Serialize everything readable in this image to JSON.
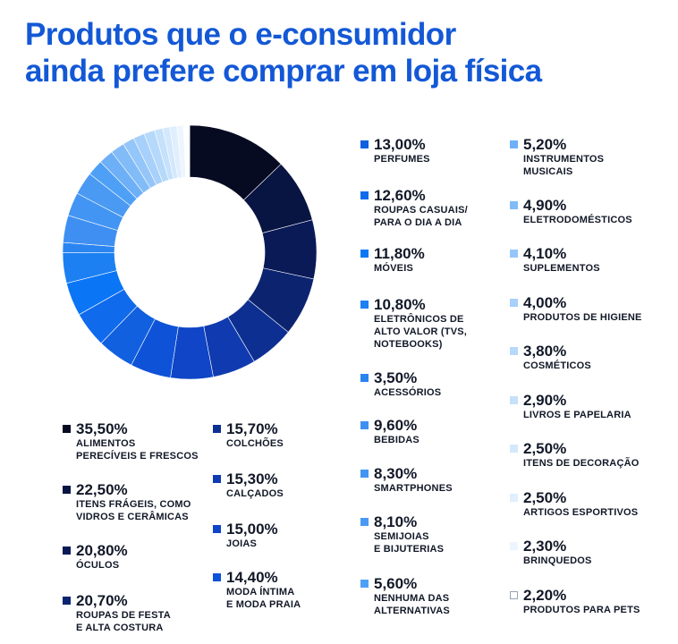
{
  "header": {
    "title_line1": "Produtos que o e-consumidor",
    "title_line2": "ainda prefere comprar em loja física"
  },
  "chart_data": {
    "type": "pie",
    "variant": "donut",
    "title": "Produtos que o e-consumidor ainda prefere comprar em loja física",
    "unit": "%",
    "slices": [
      {
        "label": "ALIMENTOS\nPERECÍVEIS E FRESCOS",
        "value": 35.5,
        "display": "35,50%",
        "color": "#060b22"
      },
      {
        "label": "ITENS FRÁGEIS, COMO\nVIDROS E CERÂMICAS",
        "value": 22.5,
        "display": "22,50%",
        "color": "#081442"
      },
      {
        "label": "ÓCULOS",
        "value": 20.8,
        "display": "20,80%",
        "color": "#0a1a57"
      },
      {
        "label": "ROUPAS DE FESTA\nE ALTA COSTURA",
        "value": 20.7,
        "display": "20,70%",
        "color": "#0c2470"
      },
      {
        "label": "COLCHÕES",
        "value": 15.7,
        "display": "15,70%",
        "color": "#0e2f92"
      },
      {
        "label": "CALÇADOS",
        "value": 15.3,
        "display": "15,30%",
        "color": "#103bb0"
      },
      {
        "label": "JOIAS",
        "value": 15.0,
        "display": "15,00%",
        "color": "#0f45c6"
      },
      {
        "label": "MODA ÍNTIMA\nE MODA PRAIA",
        "value": 14.4,
        "display": "14,40%",
        "color": "#0e52d8"
      },
      {
        "label": "PERFUMES",
        "value": 13.0,
        "display": "13,00%",
        "color": "#1160e0"
      },
      {
        "label": "ROUPAS CASUAIS/\nPARA O DIA A DIA",
        "value": 12.6,
        "display": "12,60%",
        "color": "#0f6bec"
      },
      {
        "label": "MÓVEIS",
        "value": 11.8,
        "display": "11,80%",
        "color": "#0a76f6"
      },
      {
        "label": "ELETRÔNICOS DE\nALTO VALOR (TVS,\nNOTEBOOKS)",
        "value": 10.8,
        "display": "10,80%",
        "color": "#1c80f3"
      },
      {
        "label": "ACESSÓRIOS",
        "value": 3.5,
        "display": "3,50%",
        "color": "#2a85f1"
      },
      {
        "label": "BEBIDAS",
        "value": 9.6,
        "display": "9,60%",
        "color": "#3f8ff2"
      },
      {
        "label": "SMARTPHONES",
        "value": 8.3,
        "display": "8,30%",
        "color": "#4395f3"
      },
      {
        "label": "SEMIJOIAS\nE BIJUTERIAS",
        "value": 8.1,
        "display": "8,10%",
        "color": "#4a9af4"
      },
      {
        "label": "NENHUMA DAS\nALTERNATIVAS",
        "value": 5.6,
        "display": "5,60%",
        "color": "#4ea0f6"
      },
      {
        "label": "INSTRUMENTOS\nMUSICAIS",
        "value": 5.2,
        "display": "5,20%",
        "color": "#6eb0f7"
      },
      {
        "label": "ELETRODOMÉSTICOS",
        "value": 4.9,
        "display": "4,90%",
        "color": "#82bcf8"
      },
      {
        "label": "SUPLEMENTOS",
        "value": 4.1,
        "display": "4,10%",
        "color": "#95c6f9"
      },
      {
        "label": "PRODUTOS DE HIGIENE",
        "value": 4.0,
        "display": "4,00%",
        "color": "#a7d0fa"
      },
      {
        "label": "COSMÉTICOS",
        "value": 3.8,
        "display": "3,80%",
        "color": "#b6d9fb"
      },
      {
        "label": "LIVROS E PAPELARIA",
        "value": 2.9,
        "display": "2,90%",
        "color": "#c5e1fb"
      },
      {
        "label": "ITENS DE DECORAÇÃO",
        "value": 2.5,
        "display": "2,50%",
        "color": "#d3e8fc"
      },
      {
        "label": "ARTIGOS ESPORTIVOS",
        "value": 2.5,
        "display": "2,50%",
        "color": "#e0eefd"
      },
      {
        "label": "BRINQUEDOS",
        "value": 2.3,
        "display": "2,30%",
        "color": "#edf5fe"
      },
      {
        "label": "PRODUTOS PARA PETS",
        "value": 2.2,
        "display": "2,20%",
        "color": "#ffffff"
      }
    ],
    "legend_placement": "around"
  }
}
